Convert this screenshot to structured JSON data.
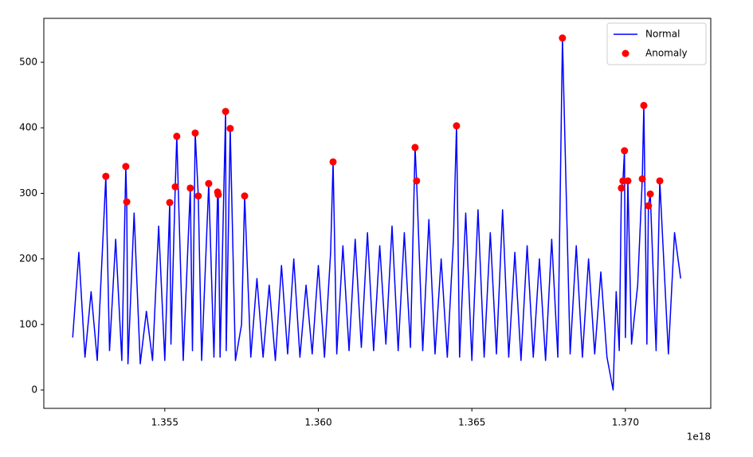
{
  "chart_data": {
    "type": "line",
    "xlim": [
      1.35106,
      1.37278
    ],
    "ylim": [
      -28,
      567
    ],
    "xticks": [
      1.355,
      {
        "value": 1.36,
        "label": "1.360"
      },
      1.365,
      {
        "value": 1.37,
        "label": "1.370"
      }
    ],
    "yticks": [
      0,
      100,
      200,
      300,
      400,
      500
    ],
    "x_offset_label": "1e18",
    "legend": "upper right",
    "grid": false,
    "series": [
      {
        "name": "Normal",
        "type": "line",
        "color": "#0000ff",
        "x": [
          1.352,
          1.3522,
          1.3524,
          1.3526,
          1.3528,
          1.35308,
          1.3532,
          1.3534,
          1.3536,
          1.35373,
          1.35376,
          1.3538,
          1.354,
          1.3542,
          1.3544,
          1.3546,
          1.3548,
          1.355,
          1.35516,
          1.3552,
          1.35534,
          1.35539,
          1.3556,
          1.35583,
          1.3559,
          1.35599,
          1.35609,
          1.3562,
          1.35643,
          1.3566,
          1.35672,
          1.35674,
          1.3568,
          1.35698,
          1.357,
          1.35713,
          1.3573,
          1.3575,
          1.3576,
          1.3578,
          1.358,
          1.3582,
          1.3584,
          1.3586,
          1.3588,
          1.359,
          1.3592,
          1.3594,
          1.3596,
          1.3598,
          1.36,
          1.3602,
          1.3604,
          1.36048,
          1.3606,
          1.3608,
          1.361,
          1.3612,
          1.3614,
          1.3616,
          1.3618,
          1.362,
          1.3622,
          1.3624,
          1.3626,
          1.3628,
          1.363,
          1.36315,
          1.3632,
          1.3634,
          1.3636,
          1.3638,
          1.364,
          1.3642,
          1.3644,
          1.3645,
          1.3646,
          1.3648,
          1.365,
          1.3652,
          1.3654,
          1.3656,
          1.3658,
          1.366,
          1.3662,
          1.3664,
          1.3666,
          1.3668,
          1.367,
          1.3672,
          1.3674,
          1.3676,
          1.3678,
          1.36795,
          1.3682,
          1.3684,
          1.3686,
          1.3688,
          1.369,
          1.3692,
          1.3694,
          1.3696,
          1.3697,
          1.3698,
          1.36987,
          1.36992,
          1.36997,
          1.37,
          1.37008,
          1.3702,
          1.3704,
          1.37055,
          1.3706,
          1.3707,
          1.37075,
          1.37081,
          1.371,
          1.37112,
          1.3714,
          1.3716,
          1.3718
        ],
        "values": [
          80,
          210,
          50,
          150,
          45,
          326,
          60,
          230,
          45,
          341,
          287,
          40,
          270,
          40,
          120,
          45,
          250,
          45,
          286,
          70,
          310,
          387,
          45,
          308,
          60,
          392,
          296,
          45,
          315,
          50,
          302,
          298,
          50,
          425,
          60,
          399,
          45,
          100,
          296,
          50,
          170,
          50,
          160,
          45,
          190,
          55,
          200,
          50,
          160,
          55,
          190,
          50,
          210,
          348,
          55,
          220,
          60,
          230,
          65,
          240,
          60,
          220,
          70,
          250,
          60,
          240,
          65,
          370,
          319,
          60,
          260,
          55,
          200,
          50,
          230,
          403,
          50,
          270,
          45,
          275,
          50,
          240,
          55,
          275,
          50,
          210,
          45,
          220,
          50,
          200,
          45,
          230,
          50,
          537,
          55,
          220,
          50,
          200,
          55,
          180,
          50,
          0,
          150,
          60,
          308,
          319,
          365,
          80,
          319,
          70,
          160,
          322,
          434,
          70,
          281,
          299,
          60,
          319,
          55,
          240,
          170
        ]
      },
      {
        "name": "Anomaly",
        "type": "scatter",
        "color": "#ff0000",
        "x": [
          1.35308,
          1.35373,
          1.35376,
          1.35516,
          1.35534,
          1.35539,
          1.35583,
          1.35599,
          1.35609,
          1.35643,
          1.35672,
          1.35674,
          1.35698,
          1.35713,
          1.3576,
          1.36048,
          1.36315,
          1.3632,
          1.3645,
          1.36795,
          1.36987,
          1.36992,
          1.36997,
          1.37008,
          1.37055,
          1.3706,
          1.37075,
          1.37081,
          1.37112
        ],
        "values": [
          326,
          341,
          287,
          286,
          310,
          387,
          308,
          392,
          296,
          315,
          302,
          298,
          425,
          399,
          296,
          348,
          370,
          319,
          403,
          537,
          308,
          319,
          365,
          319,
          322,
          434,
          281,
          299,
          319
        ]
      }
    ]
  }
}
